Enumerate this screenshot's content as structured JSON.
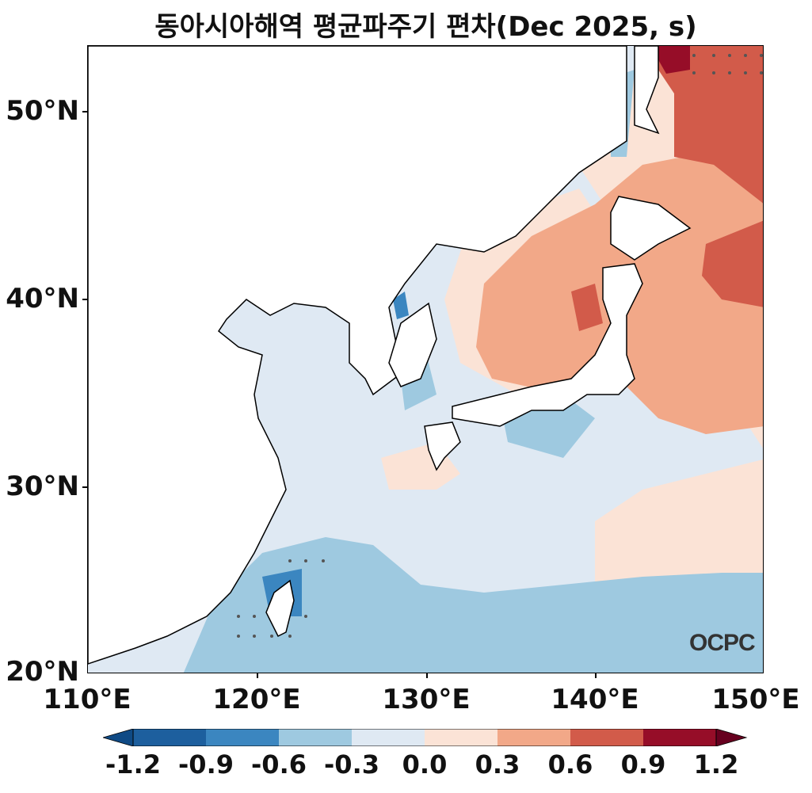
{
  "title": "동아시아해역 평균파주기 편차(Dec 2025, s)",
  "logo_text": "OCPC",
  "y_ticks": [
    "50°N",
    "40°N",
    "30°N",
    "20°N"
  ],
  "x_ticks": [
    "110°E",
    "120°E",
    "130°E",
    "140°E",
    "150°E"
  ],
  "colorbar": {
    "labels": [
      "-1.2",
      "-0.9",
      "-0.6",
      "-0.3",
      "0.0",
      "0.3",
      "0.6",
      "0.9",
      "1.2"
    ],
    "colors": [
      "#0f4a85",
      "#1d5f9e",
      "#3b86c0",
      "#9ec9e0",
      "#dfe9f3",
      "#fbe3d6",
      "#f2a888",
      "#d25b4a",
      "#960d28",
      "#67001f"
    ]
  },
  "map": {
    "lon_range": [
      110,
      150
    ],
    "lat_range": [
      20,
      53.5
    ],
    "colors": {
      "land": "#ffffff",
      "neutral": "#dfe9f3",
      "light_blue": "#9ec9e0",
      "mid_blue": "#3b86c0",
      "dark_blue": "#1d5f9e",
      "light_red": "#fbe3d6",
      "mid_red": "#f2a888",
      "strong_red": "#d25b4a",
      "dark_red": "#960d28"
    }
  }
}
